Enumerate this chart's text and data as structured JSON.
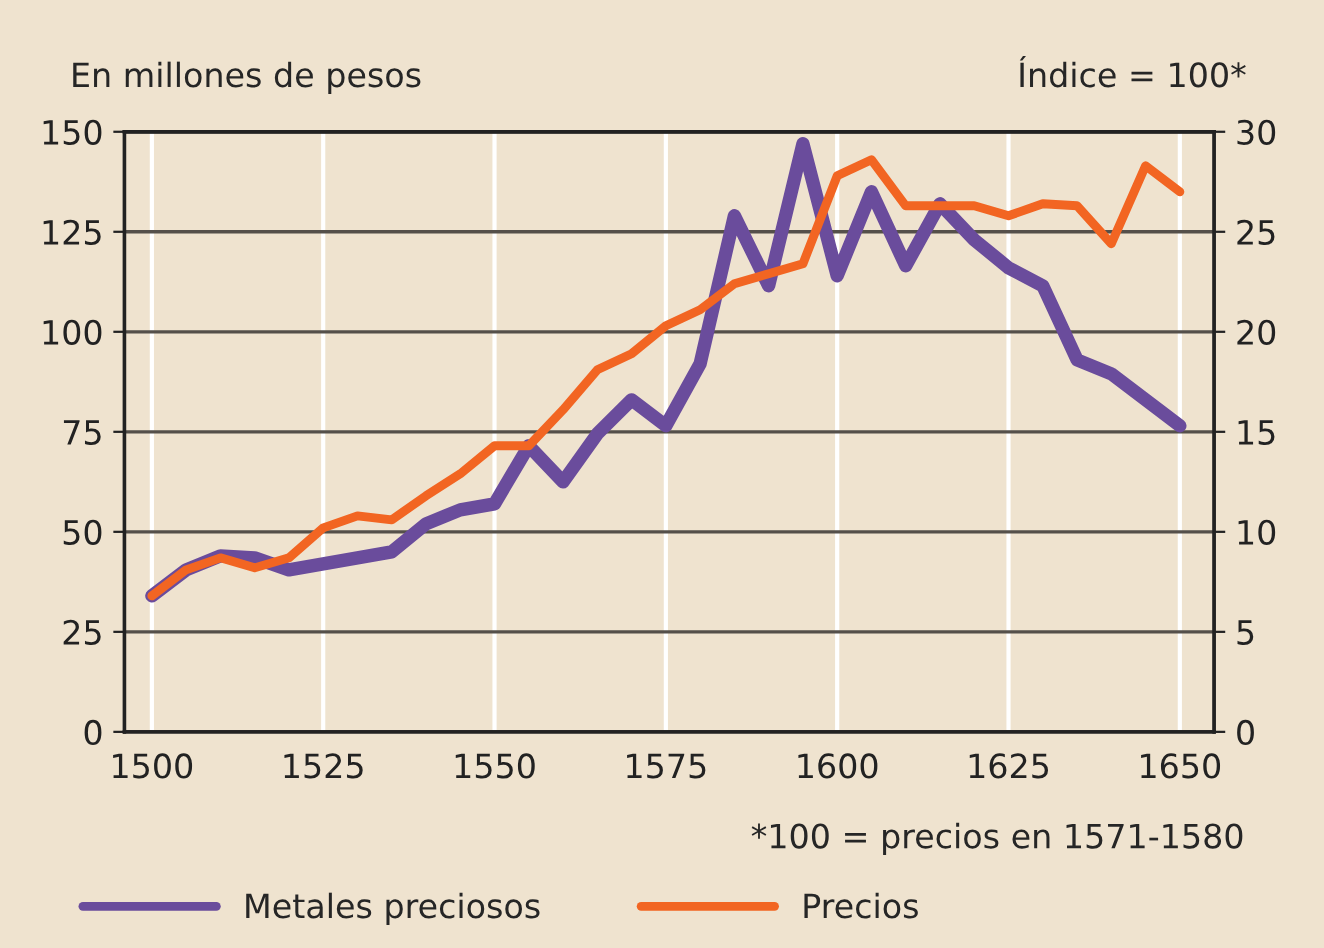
{
  "chart_data": {
    "type": "line",
    "ylabel": "En millones de pesos",
    "y2label": "Índice = 100*",
    "annotations": [
      "*100 = precios en 1571-1580"
    ],
    "x": [
      1500,
      1505,
      1510,
      1515,
      1520,
      1525,
      1530,
      1535,
      1540,
      1545,
      1550,
      1555,
      1560,
      1565,
      1570,
      1575,
      1580,
      1585,
      1590,
      1595,
      1600,
      1605,
      1610,
      1615,
      1620,
      1625,
      1630,
      1635,
      1640,
      1645,
      1650
    ],
    "series": [
      {
        "name": "Metales preciosos",
        "color": "#6a4c9c",
        "values": [
          34,
          40.5,
          44,
          43.5,
          40.5,
          42,
          43.5,
          45,
          52,
          55.5,
          57,
          71.5,
          62.5,
          74.5,
          83,
          76.5,
          92,
          129,
          111.5,
          147,
          114,
          135,
          116.5,
          132,
          123,
          116,
          111.5,
          93,
          89.5,
          83,
          76.5
        ]
      },
      {
        "name": "Precios",
        "color": "#f26522",
        "axis": "y2",
        "values": [
          6.8,
          8.1,
          8.7,
          8.2,
          8.7,
          10.2,
          10.8,
          10.6,
          11.8,
          12.9,
          14.3,
          14.3,
          16.1,
          18.1,
          18.9,
          20.3,
          21.1,
          22.4,
          22.9,
          23.4,
          27.8,
          28.6,
          26.3,
          26.3,
          26.3,
          25.8,
          26.4,
          26.3,
          24.4,
          28.3,
          27
        ]
      }
    ],
    "xlim": [
      1496,
      1655
    ],
    "xticks": [
      1500,
      1525,
      1550,
      1575,
      1600,
      1625,
      1650
    ],
    "ylim": [
      0,
      150
    ],
    "yticks": [
      0,
      25,
      50,
      75,
      100,
      125,
      150
    ],
    "y2lim": [
      0,
      30
    ],
    "y2ticks": [
      0,
      5,
      10,
      15,
      20,
      25,
      30
    ],
    "grid": true,
    "legend": "bottom",
    "line_style": "solid"
  }
}
